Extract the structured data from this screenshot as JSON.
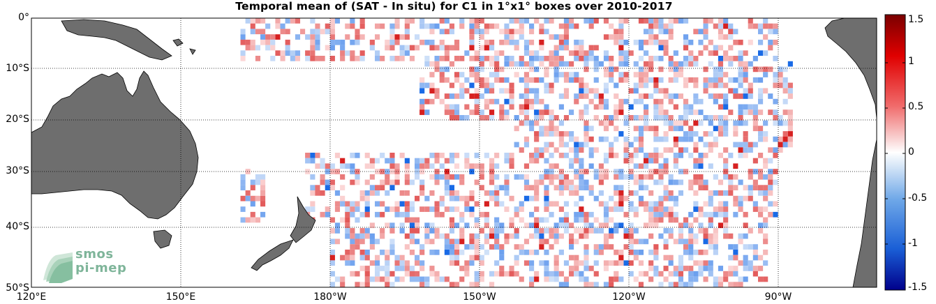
{
  "title": "Temporal mean of (SAT - In situ) for C1 in 1°x1° boxes over 2010-2017",
  "logo": {
    "line1": "smos",
    "line2": "pi-mep"
  },
  "lat_ticks": [
    "0°",
    "10°S",
    "20°S",
    "30°S",
    "40°S",
    "50°S"
  ],
  "lon_ticks": [
    "120°E",
    "150°E",
    "180°W",
    "150°W",
    "120°W",
    "90°W"
  ],
  "colorbar": {
    "labels": [
      "1.5",
      "1",
      "0.5",
      "0",
      "-0.5",
      "-1",
      "-1.5"
    ],
    "range": [
      -1.5,
      1.5
    ],
    "colormap": [
      "#00008b",
      "#1a5fd6",
      "#6fa8e8",
      "#d6e6f7",
      "#ffffff",
      "#f9d2d2",
      "#f06a6a",
      "#e00000",
      "#7a0000"
    ]
  },
  "colors": {
    "land": "#6e6e6e",
    "ocean": "#ffffff",
    "grid": "#000000"
  },
  "chart_data": {
    "type": "heatmap",
    "lon_range": [
      120,
      280
    ],
    "lat_range": [
      -50,
      0
    ],
    "cell_size_deg": 1,
    "value_range": [
      -1.5,
      1.5
    ],
    "grid": true
  }
}
